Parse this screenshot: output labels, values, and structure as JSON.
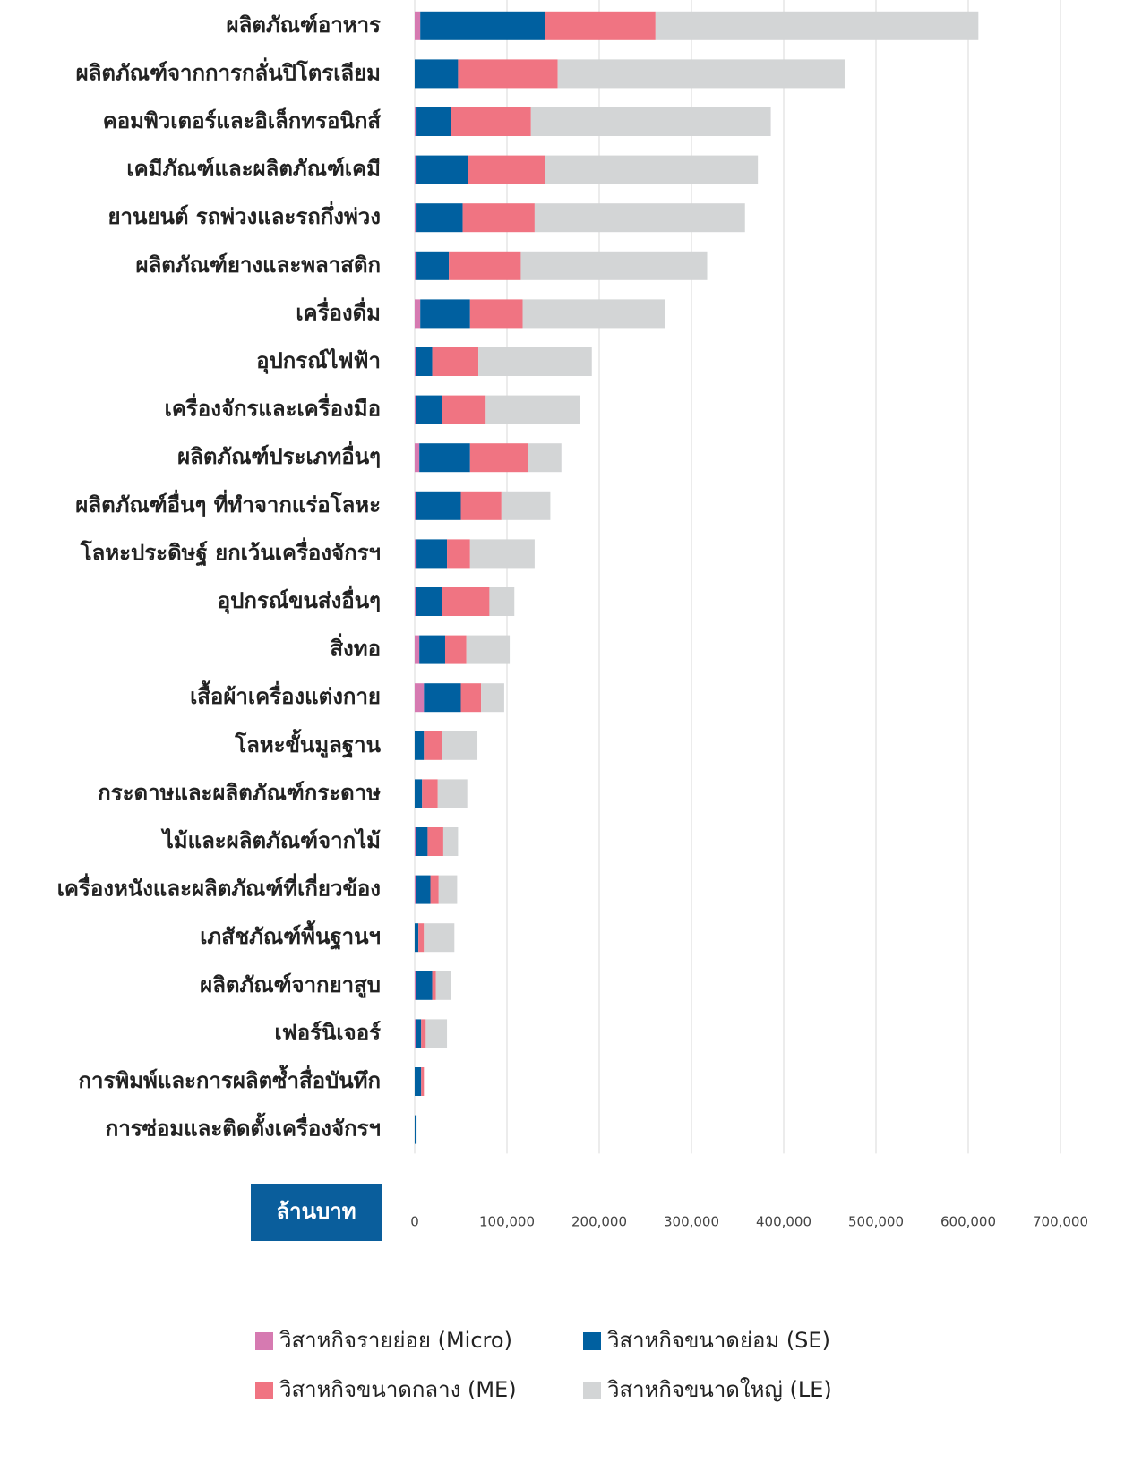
{
  "chart_data": {
    "type": "stacked-barh",
    "categories": [
      "ผลิตภัณฑ์อาหาร",
      "ผลิตภัณฑ์จากการกลั่นปิโตรเลียม",
      "คอมพิวเตอร์และอิเล็กทรอนิกส์",
      "เคมีภัณฑ์และผลิตภัณฑ์เคมี",
      "ยานยนต์ รถพ่วงและรถกึ่งพ่วง",
      "ผลิตภัณฑ์ยางและพลาสติก",
      "เครื่องดื่ม",
      "อุปกรณ์ไฟฟ้า",
      "เครื่องจักรและเครื่องมือ",
      "ผลิตภัณฑ์ประเภทอื่นๆ",
      "ผลิตภัณฑ์อื่นๆ ที่ทำจากแร่อโลหะ",
      "โลหะประดิษฐ์ ยกเว้นเครื่องจักรฯ",
      "อุปกรณ์ขนส่งอื่นๆ",
      "สิ่งทอ",
      "เสื้อผ้าเครื่องแต่งกาย",
      "โลหะขั้นมูลฐาน",
      "กระดาษและผลิตภัณฑ์กระดาษ",
      "ไม้และผลิตภัณฑ์จากไม้",
      "เครื่องหนังและผลิตภัณฑ์ที่เกี่ยวข้อง",
      "เภสัชภัณฑ์พื้นฐานฯ",
      "ผลิตภัณฑ์จากยาสูบ",
      "เฟอร์นิเจอร์",
      "การพิมพ์และการผลิตซ้ำสื่อบันทึก",
      "การซ่อมและติดตั้งเครื่องจักรฯ"
    ],
    "series": [
      {
        "name": "วิสาหกิจรายย่อย (Micro)",
        "color": "#d67ab1",
        "values": [
          6000,
          0,
          2000,
          2000,
          2000,
          2000,
          6000,
          1000,
          1000,
          5000,
          1000,
          2000,
          1000,
          5000,
          10000,
          0,
          0,
          1000,
          1000,
          0,
          1000,
          1000,
          0,
          0
        ]
      },
      {
        "name": "วิสาหกิจขนาดย่อม (SE)",
        "color": "#0060a0",
        "values": [
          135000,
          47000,
          37000,
          56000,
          50000,
          35000,
          54000,
          18000,
          29000,
          55000,
          49000,
          33000,
          29000,
          28000,
          40000,
          10000,
          8000,
          13000,
          16000,
          4000,
          18000,
          6000,
          7000,
          2000
        ]
      },
      {
        "name": "วิสาหกิจขนาดกลาง (ME)",
        "color": "#f07482",
        "values": [
          120000,
          108000,
          87000,
          83000,
          78000,
          78000,
          57000,
          50000,
          47000,
          63000,
          44000,
          25000,
          51000,
          23000,
          22000,
          20000,
          17000,
          17000,
          9000,
          6000,
          4000,
          5000,
          3000,
          0
        ]
      },
      {
        "name": "วิสาหกิจขนาดใหญ่ (LE)",
        "color": "#d3d5d6",
        "values": [
          350000,
          311000,
          260000,
          231000,
          228000,
          202000,
          154000,
          123000,
          102000,
          36000,
          53000,
          70000,
          27000,
          47000,
          25000,
          38000,
          32000,
          16000,
          20000,
          33000,
          16000,
          23000,
          0,
          0
        ]
      }
    ],
    "x_label": "ล้านบาท",
    "xlim": [
      0,
      700000
    ],
    "xticks": [
      0,
      {
        "value": 100000,
        "label": "100,000"
      },
      {
        "value": 200000,
        "label": "200,000"
      },
      {
        "value": 300000,
        "label": "300,000"
      },
      {
        "value": 400000,
        "label": "400,000"
      },
      {
        "value": 500000,
        "label": "500,000"
      },
      {
        "value": 600000,
        "label": "600,000"
      },
      {
        "value": 700000,
        "label": "700,000"
      }
    ],
    "grid": true
  }
}
